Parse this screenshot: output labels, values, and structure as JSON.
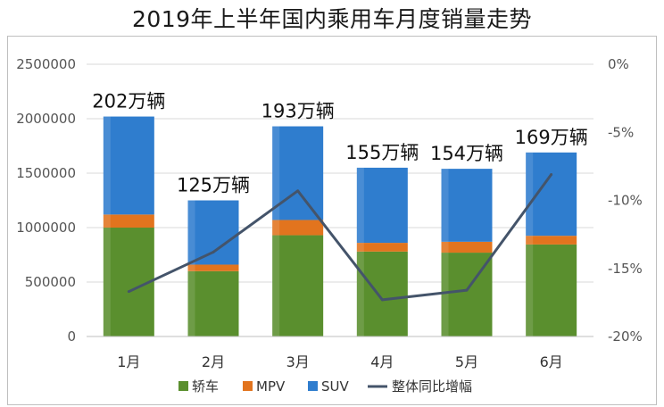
{
  "chart_data": {
    "type": "bar",
    "title": "2019年上半年国内乘用车月度销量走势",
    "stacked": true,
    "categories": [
      "1月",
      "2月",
      "3月",
      "4月",
      "5月",
      "6月"
    ],
    "series": [
      {
        "name": "轿车",
        "values": [
          1000000,
          600000,
          930000,
          780000,
          770000,
          845000
        ],
        "color": "#5a8f2e"
      },
      {
        "name": "MPV",
        "values": [
          120000,
          60000,
          140000,
          80000,
          100000,
          80000
        ],
        "color": "#e2741e"
      },
      {
        "name": "SUV",
        "values": [
          900000,
          590000,
          860000,
          690000,
          670000,
          765000
        ],
        "color": "#2f7dce"
      }
    ],
    "line_series": {
      "name": "整体同比增幅",
      "axis": "right",
      "values": [
        -16.7,
        -13.8,
        -9.3,
        -17.3,
        -16.6,
        -8.1
      ],
      "color": "#44546a"
    },
    "data_labels": [
      "202万辆",
      "125万辆",
      "193万辆",
      "155万辆",
      "154万辆",
      "169万辆"
    ],
    "y_left": {
      "ylim": [
        0,
        2500000
      ],
      "ticks": [
        "0",
        "500000",
        "1000000",
        "1500000",
        "2000000",
        "2500000"
      ]
    },
    "y_right": {
      "ylim": [
        -20,
        0
      ],
      "ticks": [
        "-20%",
        "-15%",
        "-10%",
        "-5%",
        "0%"
      ]
    },
    "grid": true,
    "legend_position": "bottom"
  }
}
